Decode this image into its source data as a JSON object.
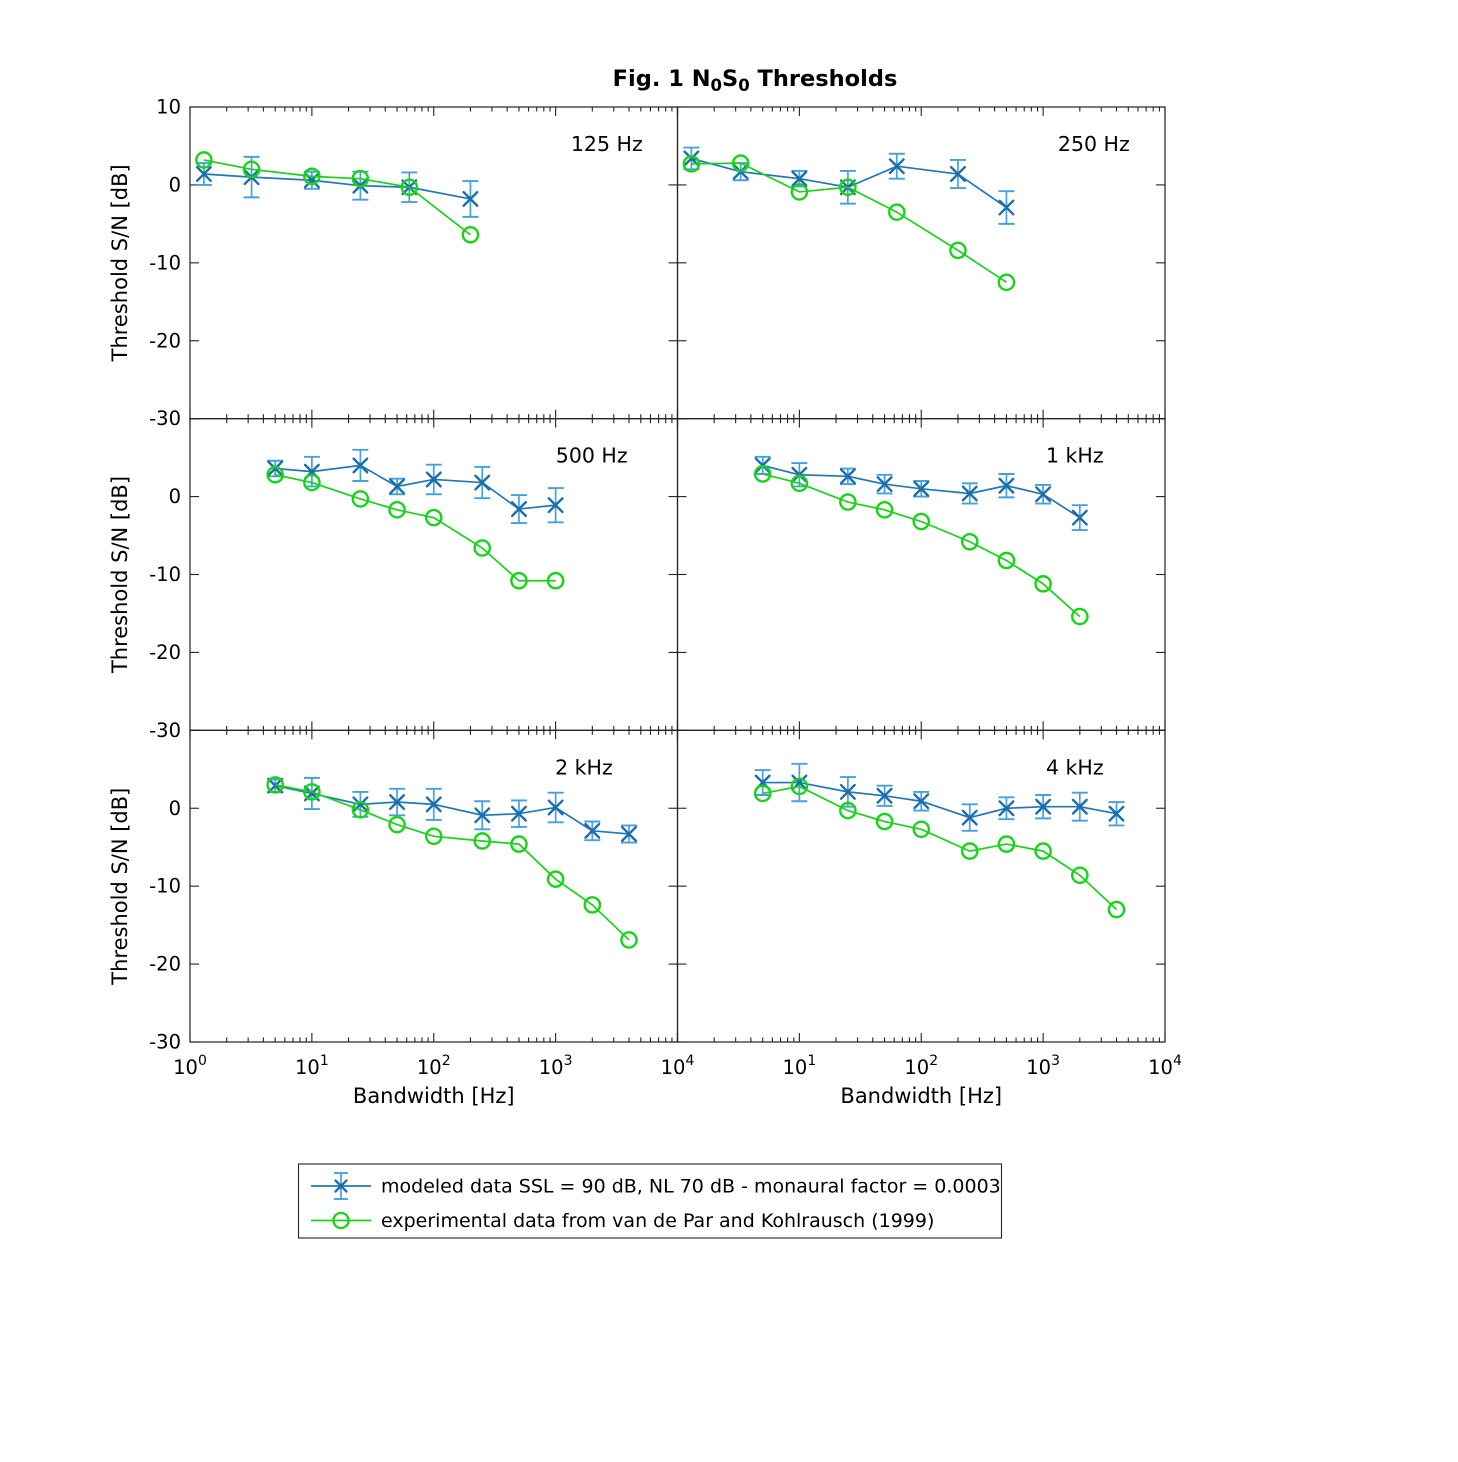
{
  "figure": {
    "title": {
      "prefix": "Fig. 1 N",
      "sub1": "0",
      "mid": "S",
      "sub2": "0",
      "suffix": " Thresholds"
    }
  },
  "axes": {
    "x_label_left": "Bandwidth [Hz]",
    "x_label_right": "Bandwidth [Hz]",
    "y_label": "Threshold S/N [dB]",
    "x_scale": "log",
    "x_tick_base": "10",
    "x_tick_exponents_left_column": [
      "0",
      "1",
      "2",
      "3",
      "4"
    ],
    "x_tick_exponents_right_column": [
      "1",
      "2",
      "3",
      "4"
    ],
    "y_major_ticks": [
      10,
      0,
      -10,
      -20,
      -30
    ]
  },
  "legend": {
    "items": [
      {
        "series": "modeled",
        "label": "modeled data SSL = 90 dB, NL 70 dB  - monaural factor = 0.0003"
      },
      {
        "series": "experimental",
        "label": "experimental data from van de Par and Kohlrausch (1999)"
      }
    ]
  },
  "colors": {
    "modeled_line": "#2277b6",
    "modeled_marker": "#1d6dab",
    "modeled_errorbar": "#45a1dd",
    "experimental_line": "#18d418",
    "axis": "#222222",
    "text": "#000000",
    "background": "#ffffff"
  },
  "chart_data": {
    "type": "line",
    "title": "Fig. 1 N0S0 Thresholds",
    "xlabel": "Bandwidth [Hz]",
    "ylabel": "Threshold S/N [dB]",
    "xscale": "log",
    "xlim": [
      1,
      10000
    ],
    "ylim": [
      -30,
      10
    ],
    "x_major_ticks": [
      1,
      10,
      100,
      1000,
      10000
    ],
    "y_major_ticks": [
      10,
      0,
      -10,
      -20,
      -30
    ],
    "grid": false,
    "legend_position": "below-figure",
    "series_names": [
      "modeled data SSL = 90 dB, NL 70 dB  - monaural factor = 0.0003",
      "experimental data from van de Par and Kohlrausch (1999)"
    ],
    "panels": [
      {
        "label": "125 Hz",
        "x": [
          1.3,
          3.2,
          10,
          25,
          63,
          200
        ],
        "modeled": [
          1.4,
          1.0,
          0.6,
          -0.1,
          -0.3,
          -1.8
        ],
        "modeled_err": [
          1.4,
          2.6,
          1.1,
          1.8,
          1.9,
          2.3
        ],
        "experimental": [
          3.2,
          2.0,
          1.1,
          0.8,
          -0.3,
          -6.4
        ]
      },
      {
        "label": "250 Hz",
        "x": [
          1.3,
          3.3,
          10,
          25,
          63,
          200,
          500
        ],
        "modeled": [
          3.4,
          1.7,
          0.8,
          -0.3,
          2.4,
          1.4,
          -2.9
        ],
        "modeled_err": [
          1.4,
          1.1,
          1.0,
          2.1,
          1.6,
          1.8,
          2.1
        ],
        "experimental": [
          2.7,
          2.8,
          -0.9,
          -0.3,
          -3.5,
          -8.4,
          -12.5
        ]
      },
      {
        "label": "500 Hz",
        "x": [
          5,
          10,
          25,
          50,
          100,
          250,
          500,
          1000
        ],
        "modeled": [
          3.6,
          3.2,
          4.0,
          1.3,
          2.2,
          1.8,
          -1.6,
          -1.1
        ],
        "modeled_err": [
          1.0,
          1.9,
          2.0,
          1.0,
          1.9,
          2.0,
          1.8,
          2.2
        ],
        "experimental": [
          2.8,
          1.8,
          -0.3,
          -1.7,
          -2.7,
          -6.6,
          -10.8,
          -10.8
        ]
      },
      {
        "label": "1 kHz",
        "x": [
          5,
          10,
          25,
          50,
          100,
          250,
          500,
          1000,
          2000
        ],
        "modeled": [
          4.0,
          2.8,
          2.6,
          1.6,
          1.0,
          0.4,
          1.4,
          0.3,
          -2.7
        ],
        "modeled_err": [
          1.1,
          1.5,
          1.0,
          1.2,
          1.0,
          1.3,
          1.5,
          1.2,
          1.6
        ],
        "experimental": [
          2.9,
          1.7,
          -0.7,
          -1.7,
          -3.2,
          -5.8,
          -8.2,
          -11.2,
          -15.4
        ]
      },
      {
        "label": "2 kHz",
        "x": [
          5,
          10,
          25,
          50,
          100,
          250,
          500,
          1000,
          2000,
          4000
        ],
        "modeled": [
          2.9,
          1.9,
          0.5,
          0.8,
          0.5,
          -0.9,
          -0.7,
          0.1,
          -2.9,
          -3.3
        ],
        "modeled_err": [
          0.8,
          2.0,
          1.6,
          1.7,
          2.0,
          1.8,
          1.7,
          1.9,
          1.2,
          1.1
        ],
        "experimental": [
          3.0,
          2.1,
          -0.2,
          -2.1,
          -3.6,
          -4.2,
          -4.6,
          -9.1,
          -12.4,
          -16.9
        ]
      },
      {
        "label": "4 kHz",
        "x": [
          5,
          10,
          25,
          50,
          100,
          250,
          500,
          1000,
          2000,
          4000
        ],
        "modeled": [
          3.3,
          3.3,
          2.1,
          1.6,
          0.9,
          -1.2,
          0.0,
          0.2,
          0.2,
          -0.7
        ],
        "modeled_err": [
          1.6,
          2.4,
          1.9,
          1.3,
          1.2,
          1.7,
          1.4,
          1.5,
          1.8,
          1.5
        ],
        "experimental": [
          1.9,
          2.8,
          -0.3,
          -1.7,
          -2.7,
          -5.5,
          -4.6,
          -5.5,
          -8.6,
          -13.0
        ]
      }
    ]
  }
}
